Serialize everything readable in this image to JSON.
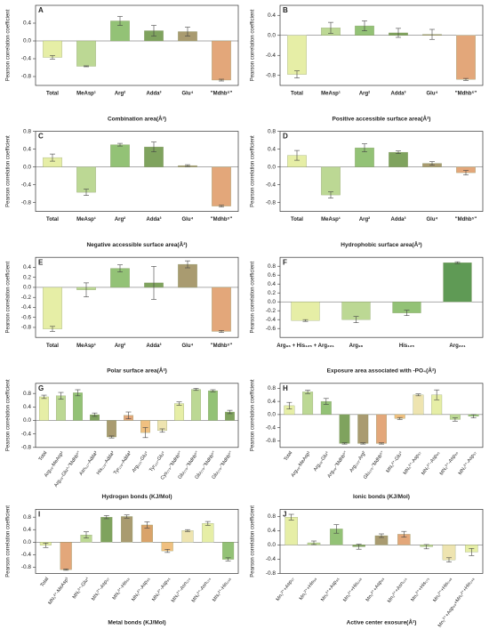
{
  "chart_data": [
    {
      "type": "bar",
      "label": "A",
      "ylabel": "Pearson correlation coefficient",
      "xlabel": "Combination area(Å²)",
      "categories": [
        "Total",
        "MeAsp¹",
        "Arg²",
        "Adda³",
        "Glu⁴",
        "\"Mdhb⁵\""
      ],
      "values": [
        -0.37,
        -0.57,
        0.45,
        0.23,
        0.21,
        -0.88
      ],
      "errors": [
        0.04,
        0.01,
        0.1,
        0.12,
        0.1,
        0.02
      ],
      "colors": [
        "#e6eea6",
        "#bcd894",
        "#93c276",
        "#7fa35e",
        "#a99b70",
        "#e3a77a"
      ],
      "ylim": [
        -1,
        0.8
      ],
      "yticks": [
        -0.8,
        -0.4,
        {
          "value": 0,
          "label": "0.0"
        },
        0.4
      ]
    },
    {
      "type": "bar",
      "label": "B",
      "ylabel": "Pearson correlation coefficient",
      "xlabel": "Positive accessible surface area(Å²)",
      "categories": [
        "Total",
        "MeAsp¹",
        "Arg²",
        "Adda³",
        "Glu⁴",
        "\"Mdhb⁵\""
      ],
      "values": [
        -0.78,
        0.15,
        0.19,
        0.05,
        0.02,
        -0.88
      ],
      "errors": [
        0.07,
        0.11,
        0.1,
        0.09,
        0.1,
        0.02
      ],
      "colors": [
        "#e6eea6",
        "#bcd894",
        "#93c276",
        "#7fa35e",
        "#a99b70",
        "#e3a77a"
      ],
      "ylim": [
        -1,
        0.6
      ],
      "yticks": [
        -0.8,
        -0.4,
        {
          "value": 0,
          "label": "0.0"
        },
        0.4
      ]
    },
    {
      "type": "bar",
      "label": "C",
      "ylabel": "Pearson correlation coefficient",
      "xlabel": "Negative accessible surface area(Å²)",
      "categories": [
        "Total",
        "MeAsp¹",
        "Arg²",
        "Adda³",
        "Glu⁴",
        "\"Mdhb⁵\""
      ],
      "values": [
        0.21,
        -0.57,
        0.5,
        0.45,
        0.03,
        -0.88
      ],
      "errors": [
        0.08,
        0.07,
        0.03,
        0.11,
        0.02,
        0.02
      ],
      "colors": [
        "#e6eea6",
        "#bcd894",
        "#93c276",
        "#7fa35e",
        "#a99b70",
        "#e3a77a"
      ],
      "ylim": [
        -1,
        0.8
      ],
      "yticks": [
        -0.8,
        -0.4,
        {
          "value": 0,
          "label": "0.0"
        },
        0.4,
        0.8
      ]
    },
    {
      "type": "bar",
      "label": "D",
      "ylabel": "Pearson correlation coefficient",
      "xlabel": "Hydrophobic surface area(Å²)",
      "categories": [
        "Total",
        "MeAsp¹",
        "Arg²",
        "Adda³",
        "Glu⁴",
        "\"Mdhb⁵\""
      ],
      "values": [
        0.26,
        -0.63,
        0.43,
        0.33,
        0.08,
        -0.13
      ],
      "errors": [
        0.11,
        0.07,
        0.09,
        0.03,
        0.04,
        0.05
      ],
      "colors": [
        "#e6eea6",
        "#bcd894",
        "#93c276",
        "#7fa35e",
        "#a99b70",
        "#e3a77a"
      ],
      "ylim": [
        -1,
        0.8
      ],
      "yticks": [
        -0.8,
        -0.4,
        {
          "value": 0,
          "label": "0.0"
        },
        0.4,
        0.8
      ]
    },
    {
      "type": "bar",
      "label": "E",
      "ylabel": "Pearson correlation coefficient",
      "xlabel": "Polar surface area(Å²)",
      "categories": [
        "Total",
        "MeAsp¹",
        "Arg²",
        "Adda³",
        "Glu⁴",
        "\"Mdhb⁵\""
      ],
      "values": [
        -0.83,
        -0.05,
        0.38,
        0.09,
        0.46,
        -0.88
      ],
      "errors": [
        0.05,
        0.14,
        0.07,
        0.33,
        0.07,
        0.02
      ],
      "colors": [
        "#e6eea6",
        "#bcd894",
        "#93c276",
        "#7fa35e",
        "#a99b70",
        "#e3a77a"
      ],
      "ylim": [
        -1,
        0.6
      ],
      "yticks": [
        -0.8,
        -0.6,
        -0.4,
        -0.2,
        {
          "value": 0,
          "label": "0.0"
        },
        0.2,
        0.4
      ]
    },
    {
      "type": "bar",
      "label": "F",
      "ylabel": "Pearson correlation coefficient",
      "xlabel": "Exposure area associated with -PO₄(Å²)",
      "categories": [
        "Arg₉₆ + His₁₂₅ + Arg₂₂₁",
        "Arg₉₆",
        "His₁₂₅",
        "Arg₂₂₁"
      ],
      "values": [
        -0.42,
        -0.4,
        -0.25,
        0.88
      ],
      "errors": [
        0.02,
        0.07,
        0.06,
        0.02
      ],
      "colors": [
        "#e6eea6",
        "#bcd894",
        "#93c276",
        "#5f9a55"
      ],
      "ylim": [
        -0.8,
        1
      ],
      "yticks": [
        -0.6,
        -0.4,
        -0.2,
        {
          "value": 0,
          "label": "0.0"
        },
        0.2,
        0.4,
        0.6,
        0.8
      ]
    },
    {
      "type": "bar",
      "label": "G",
      "ylabel": "Pearson correlation coefficient",
      "xlabel": "Hydrogen bonds (KJ/Mol)",
      "categories": [
        "Total",
        "Arg₄₈-MeAsp¹",
        "Arg₄₈-Glu⁴-\"Mdhb⁵\"",
        "Asn₁₁₇-Adda³",
        "His₁₂₅-Adda³",
        "Tyr₁₂₈-Adda³",
        "Arg₂₂₁-Glu⁴",
        "Tyr₂₂₇-Glu⁴",
        "Cys₂₇₃-\"Mdhb⁵\"",
        "Glu₂₇₅-\"Mdhb⁵\"",
        "Glu₂₇₅-\"Mdhb⁵\"",
        "Glu₂₇₅-\"Mdhb⁵\""
      ],
      "values": [
        0.7,
        0.73,
        0.82,
        0.17,
        -0.49,
        0.15,
        -0.36,
        -0.3,
        0.5,
        0.92,
        0.88,
        0.25
      ],
      "errors": [
        0.05,
        0.1,
        0.09,
        0.05,
        0.03,
        0.1,
        0.15,
        0.05,
        0.05,
        0.03,
        0.03,
        0.05
      ],
      "colors": [
        "#e6eea6",
        "#bcd894",
        "#93c276",
        "#7fa35e",
        "#a99b70",
        "#e3a77a",
        "#f0c080",
        "#eee4b0",
        "#e6eea6",
        "#bcd894",
        "#93c276",
        "#7fa35e"
      ],
      "ylim": [
        -0.8,
        1.1
      ],
      "yticks": [
        -0.8,
        -0.4,
        {
          "value": 0,
          "label": "0.0"
        },
        0.4,
        0.8
      ]
    },
    {
      "type": "bar",
      "label": "H",
      "ylabel": "Pearson correlation coefficient",
      "xlabel": "Ionic bonds (KJ/Mol)",
      "categories": [
        "Total",
        "Arg₄₈-MeAsp¹",
        "Arg₄₈-Glu⁴",
        "Arg₄₈-\"Mdhb⁵\"",
        "Arg₂₂₀-Arg²",
        "Glu₂₇₅-\"Mdhb⁵\"",
        "MN₁²⁺-Glu⁴",
        "MN₁²⁺-Asp₅₇",
        "MN₁²⁺-Asp₈₅",
        "MN₂²⁺-Asp₈₅",
        "MN₂²⁺-Asp₅₇"
      ],
      "values": [
        0.27,
        0.69,
        0.4,
        -0.88,
        -0.88,
        -0.88,
        -0.12,
        0.6,
        0.6,
        -0.15,
        -0.05
      ],
      "errors": [
        0.1,
        0.05,
        0.09,
        0.02,
        0.02,
        0.02,
        0.03,
        0.03,
        0.15,
        0.05,
        0.05
      ],
      "colors": [
        "#e6eea6",
        "#bcd894",
        "#93c276",
        "#7fa35e",
        "#a99b70",
        "#e3a77a",
        "#f0c080",
        "#eee4b0",
        "#e6eea6",
        "#bcd894",
        "#93c276"
      ],
      "ylim": [
        -1,
        0.95
      ],
      "yticks": [
        -0.8,
        -0.4,
        {
          "value": 0,
          "label": "0.0"
        },
        0.4,
        0.8
      ]
    },
    {
      "type": "bar",
      "label": "I",
      "ylabel": "Pearson correlation coefficient",
      "xlabel": "Metal bonds (KJ/Mol)",
      "categories": [
        "Total",
        "MN₁²⁺-MeAsp¹",
        "MN₁²⁺-Glu⁴",
        "MN₁²⁺-Asp₅₇",
        "MN₁²⁺-His₅₉",
        "MN₂²⁺-Asp₈₅",
        "MN₂²⁺-Asp₈₅",
        "MN₂²⁺-Asn₁₂₄",
        "MN₂²⁺-Asn₁₂₄",
        "MN₂²⁺-His₂₄₈"
      ],
      "values": [
        -0.1,
        -0.88,
        0.23,
        0.8,
        0.82,
        0.55,
        -0.28,
        0.37,
        0.6,
        -0.55
      ],
      "errors": [
        0.07,
        0.02,
        0.1,
        0.05,
        0.05,
        0.1,
        0.05,
        0.03,
        0.06,
        0.05
      ],
      "colors": [
        "#e6eea6",
        "#e3a77a",
        "#bcd894",
        "#7fa35e",
        "#a99b70",
        "#d9a36a",
        "#f0c080",
        "#eee4b0",
        "#e6eea6",
        "#93c276"
      ],
      "ylim": [
        -1,
        1.05
      ],
      "yticks": [
        -0.8,
        -0.4,
        {
          "value": 0,
          "label": "0.0"
        },
        0.4,
        0.8
      ]
    },
    {
      "type": "bar",
      "label": "J",
      "ylabel": "Pearson correlation coefficient",
      "xlabel": "Active center exosure(Å²)",
      "categories": [
        "Mn₁²⁺+Asp₅₇",
        "Mn₁²⁺+His₅₉",
        "Mn₁²⁺+Asp₈₅",
        "Mn₁²⁺+His₂₄₈",
        "Mn₂²⁺+Asp₈₅",
        "Mn₂²⁺+Asn₁₂₄",
        "Mn₂²⁺+His₁₇₃",
        "Mn₂²⁺+His₂₄₈",
        "Mn₁²⁺+Asp₈₅+Mn₂²⁺+His₂₄₈"
      ],
      "values": [
        0.78,
        0.06,
        0.45,
        -0.05,
        0.26,
        0.3,
        -0.05,
        -0.42,
        -0.2
      ],
      "errors": [
        0.08,
        0.05,
        0.12,
        0.07,
        0.05,
        0.08,
        0.06,
        0.06,
        0.1
      ],
      "colors": [
        "#e6eea6",
        "#bcd894",
        "#93c276",
        "#7fa35e",
        "#a99b70",
        "#e3a77a",
        "#bcd894",
        "#eee4b0",
        "#e6eea6"
      ],
      "ylim": [
        -0.8,
        1
      ],
      "yticks": [
        -0.8,
        -0.4,
        {
          "value": 0,
          "label": "0.0"
        },
        0.4,
        0.8
      ]
    }
  ]
}
